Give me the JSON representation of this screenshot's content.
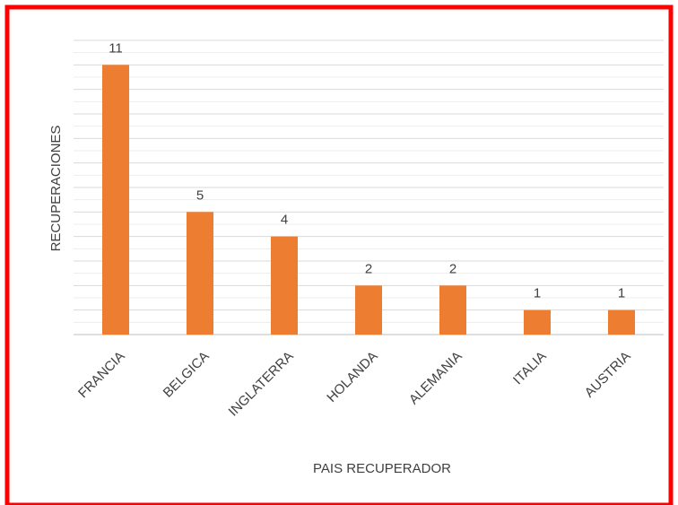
{
  "chart_data": {
    "type": "bar",
    "x_label": "PAIS RECUPERADOR",
    "y_label": "RECUPERACIONES",
    "categories": [
      "FRANCIA",
      "BELGICA",
      "INGLATERRA",
      "HOLANDA",
      "ALEMANIA",
      "ITALIA",
      "AUSTRIA"
    ],
    "values": [
      11,
      5,
      4,
      2,
      2,
      1,
      1
    ],
    "color": "#ed7d31",
    "ylim": [
      0,
      12
    ],
    "yticks": [
      0,
      1,
      2,
      3,
      4,
      5,
      6,
      7,
      8,
      9,
      10,
      11,
      12
    ],
    "ytick_labels": false,
    "grid": true
  }
}
